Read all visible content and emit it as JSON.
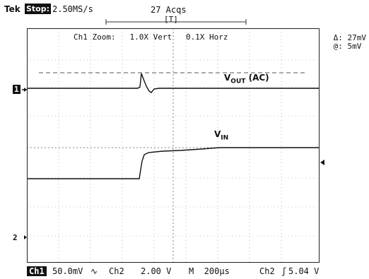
{
  "header": {
    "brand": "Tek",
    "status": "Stop:",
    "sample_rate": "2.50MS/s",
    "acquisitions": "27 Acqs",
    "trigger_marker": "[T]"
  },
  "zoom_info": "Ch1 Zoom:   1.0X Vert   0.1X Horz",
  "measurements": {
    "delta": "Δ: 27mV",
    "at": "@: 5mV"
  },
  "signals": {
    "vout_label": "V",
    "vout_sub": "OUT",
    "vout_suffix": " (AC)",
    "vin_label": "V",
    "vin_sub": "IN"
  },
  "markers": {
    "ch1": "1",
    "ch2": "2"
  },
  "footer": {
    "ch1_label": "Ch1",
    "ch1_scale": "50.0mV",
    "ch2_label": "Ch2",
    "ch2_scale": "2.00 V",
    "timebase": "M  200µs",
    "trigger_source": "Ch2",
    "trigger_level": "5.04 V"
  }
}
